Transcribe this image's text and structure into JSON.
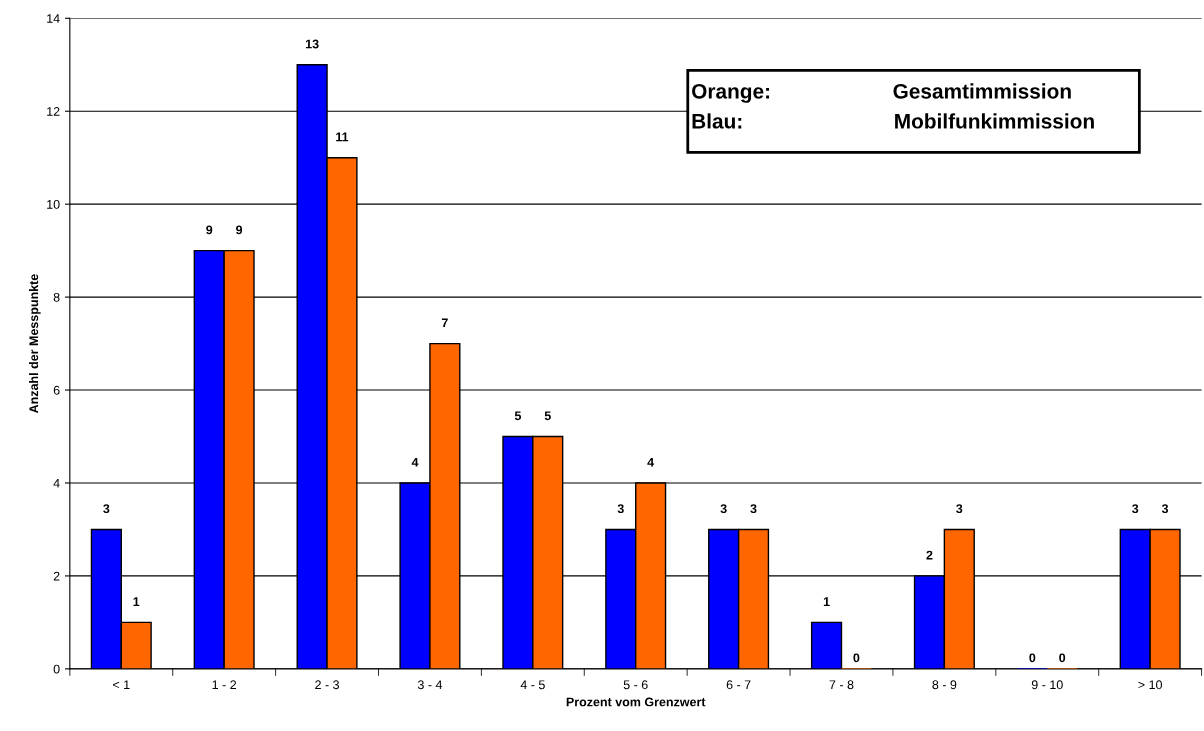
{
  "chart_data": {
    "type": "bar",
    "xlabel": "Prozent vom Grenzwert",
    "ylabel": "Anzahl der Messpunkte",
    "categories": [
      "< 1",
      "1 - 2",
      "2 - 3",
      "3 - 4",
      "4 - 5",
      "5 - 6",
      "6 - 7",
      "7 - 8",
      "8 - 9",
      "9 - 10",
      "> 10"
    ],
    "series": [
      {
        "color": "#0000ff",
        "values": [
          3,
          9,
          13,
          4,
          5,
          3,
          3,
          1,
          2,
          0,
          3
        ]
      },
      {
        "color": "#ff6600",
        "values": [
          1,
          9,
          11,
          7,
          5,
          4,
          3,
          0,
          3,
          0,
          3
        ]
      }
    ],
    "ylim": [
      0,
      14
    ],
    "yticks": [
      0,
      2,
      4,
      6,
      8,
      10,
      12,
      14
    ],
    "grid": "y",
    "data_labels": true,
    "legend": false,
    "annotations": [
      "Orange:\tGesamtimmission",
      "Blau:\tMobilfunkimmission"
    ]
  }
}
